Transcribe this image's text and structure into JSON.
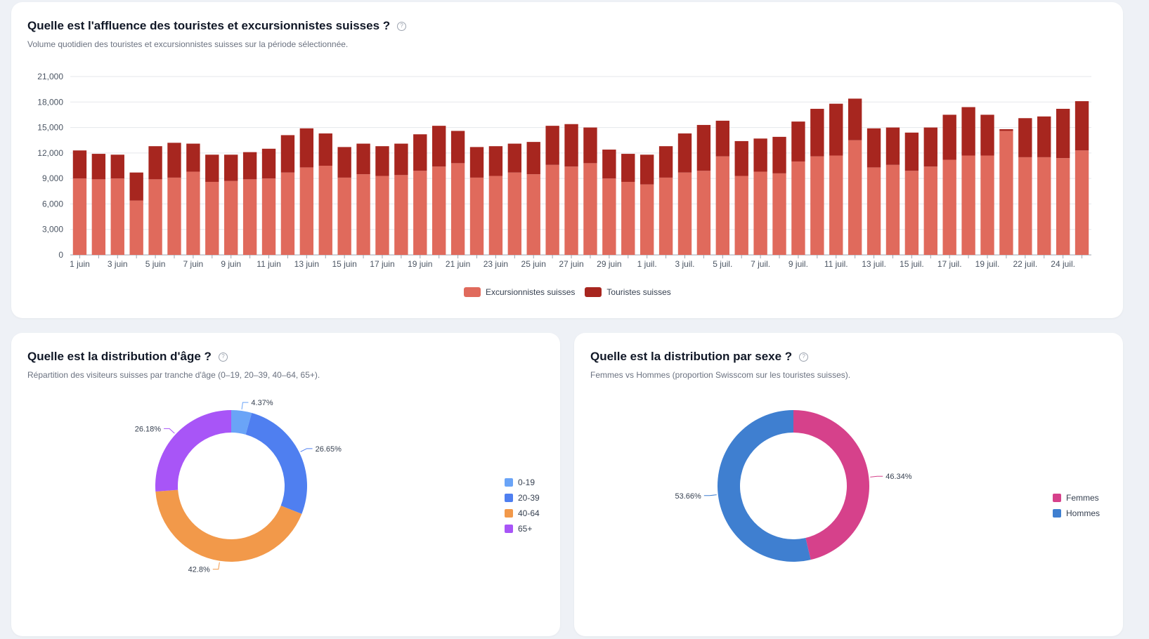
{
  "bar_card": {
    "title": "Quelle est l'affluence des touristes et excursionnistes suisses ?",
    "subtitle": "Volume quotidien des touristes et excursionnistes suisses sur la période sélectionnée.",
    "help_icon": "?"
  },
  "age_card": {
    "title": "Quelle est la distribution d'âge ?",
    "subtitle": "Répartition des visiteurs suisses par tranche d'âge (0–19, 20–39, 40–64, 65+).",
    "help_icon": "?"
  },
  "sex_card": {
    "title": "Quelle est la distribution par sexe ?",
    "subtitle": "Femmes vs Hommes (proportion Swisscom sur les touristes suisses).",
    "help_icon": "?"
  },
  "chart_data": [
    {
      "type": "bar",
      "stacked": true,
      "title": "",
      "xlabel": "",
      "ylabel": "",
      "ylim": [
        0,
        21000
      ],
      "y_ticks": [
        0,
        3000,
        6000,
        9000,
        12000,
        15000,
        18000,
        21000
      ],
      "y_tick_labels": [
        "0",
        "3,000",
        "6,000",
        "9,000",
        "12,000",
        "15,000",
        "18,000",
        "21,000"
      ],
      "grid": true,
      "legend_position": "bottom",
      "categories": [
        "1 juin",
        "2 juin",
        "3 juin",
        "4 juin",
        "5 juin",
        "6 juin",
        "7 juin",
        "8 juin",
        "9 juin",
        "10 juin",
        "11 juin",
        "12 juin",
        "13 juin",
        "14 juin",
        "15 juin",
        "16 juin",
        "17 juin",
        "18 juin",
        "19 juin",
        "20 juin",
        "21 juin",
        "22 juin",
        "23 juin",
        "24 juin",
        "25 juin",
        "26 juin",
        "27 juin",
        "28 juin",
        "29 juin",
        "30 juin",
        "1 juil.",
        "2 juil.",
        "3 juil.",
        "4 juil.",
        "5 juil.",
        "6 juil.",
        "7 juil.",
        "8 juil.",
        "9 juil.",
        "10 juil.",
        "11 juil.",
        "12 juil.",
        "13 juil.",
        "14 juil.",
        "15 juil.",
        "16 juil.",
        "17 juil.",
        "18 juil.",
        "19 juil.",
        "20 juil.",
        "22 juil.",
        "23 juil.",
        "24 juil.",
        "25 juil."
      ],
      "x_tick_labels": [
        "1 juin",
        "3 juin",
        "5 juin",
        "7 juin",
        "9 juin",
        "11 juin",
        "13 juin",
        "15 juin",
        "17 juin",
        "19 juin",
        "21 juin",
        "23 juin",
        "25 juin",
        "27 juin",
        "29 juin",
        "1 juil.",
        "3 juil.",
        "5 juil.",
        "7 juil.",
        "9 juil.",
        "11 juil.",
        "13 juil.",
        "15 juil.",
        "17 juil.",
        "19 juil.",
        "22 juil.",
        "24 juil."
      ],
      "series": [
        {
          "name": "Excursionnistes suisses",
          "color": "#e06a5c",
          "values": [
            9000,
            8900,
            9000,
            6400,
            8900,
            9100,
            9800,
            8600,
            8700,
            8900,
            9000,
            9700,
            10300,
            10500,
            9100,
            9500,
            9300,
            9400,
            9900,
            10400,
            10800,
            9100,
            9300,
            9700,
            9500,
            10600,
            10400,
            10800,
            9000,
            8600,
            8300,
            9100,
            9700,
            9900,
            11600,
            9300,
            9800,
            9600,
            11000,
            11600,
            11700,
            13500,
            10300,
            10600,
            9900,
            10400,
            11200,
            11700,
            11700,
            14600,
            11500,
            11500,
            11400,
            12300
          ]
        },
        {
          "name": "Touristes suisses",
          "color": "#a7261f",
          "values": [
            3300,
            3000,
            2800,
            3300,
            3900,
            4100,
            3300,
            3200,
            3100,
            3200,
            3500,
            4400,
            4600,
            3800,
            3600,
            3600,
            3500,
            3700,
            4300,
            4800,
            3800,
            3600,
            3500,
            3400,
            3800,
            4600,
            5000,
            4200,
            3400,
            3300,
            3500,
            3700,
            4600,
            5400,
            4200,
            4100,
            3900,
            4300,
            4700,
            5600,
            6100,
            4900,
            4600,
            4400,
            4500,
            4600,
            5300,
            5700,
            4800,
            200,
            4600,
            4800,
            5800,
            5800
          ]
        }
      ]
    },
    {
      "type": "pie",
      "donut": true,
      "title": "",
      "legend_position": "right",
      "categories": [
        "0-19",
        "20-39",
        "40-64",
        "65+"
      ],
      "values": [
        4.37,
        26.65,
        42.8,
        26.18
      ],
      "labels": [
        "4.37%",
        "26.65%",
        "42.8%",
        "26.18%"
      ],
      "colors": [
        "#6aa4f7",
        "#4f7ff0",
        "#f2994a",
        "#a855f7"
      ]
    },
    {
      "type": "pie",
      "donut": true,
      "title": "",
      "legend_position": "right",
      "categories": [
        "Femmes",
        "Hommes"
      ],
      "values": [
        46.34,
        53.66
      ],
      "labels": [
        "46.34%",
        "53.66%"
      ],
      "colors": [
        "#d6418b",
        "#3f7fd0"
      ]
    }
  ]
}
